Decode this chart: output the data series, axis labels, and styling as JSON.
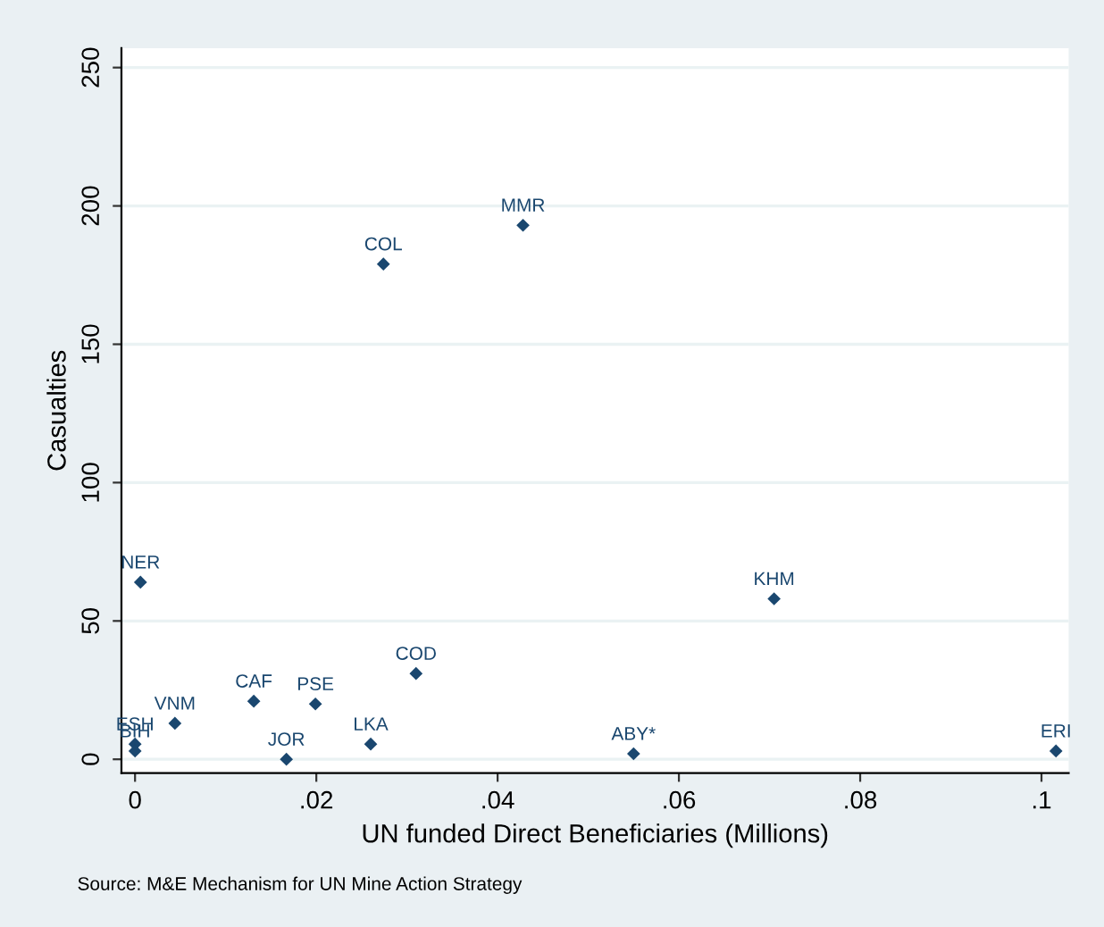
{
  "chart_data": {
    "type": "scatter",
    "xlabel": "UN funded Direct Beneficiaries (Millions)",
    "ylabel": "Casualties",
    "x": [
      0.0006,
      0,
      0,
      0.0044,
      0.0131,
      0.0167,
      0.0199,
      0.026,
      0.031,
      0.0274,
      0.0428,
      0.055,
      0.0705,
      0.1016
    ],
    "series": [
      {
        "color": "#1a476f",
        "values": [
          64,
          5.5,
          3,
          13,
          21,
          0,
          20,
          5.5,
          31,
          179,
          193,
          2,
          58,
          3
        ]
      }
    ],
    "marker": "diamond",
    "grid": "y",
    "xlim": [
      -0.0015,
      0.103
    ],
    "ylim": [
      -5,
      257
    ],
    "xticks": [
      {
        "value": 0,
        "label": "0"
      },
      {
        "value": 0.02,
        "label": ".02"
      },
      {
        "value": 0.04,
        "label": ".04"
      },
      {
        "value": 0.06,
        "label": ".06"
      },
      {
        "value": 0.08,
        "label": ".08"
      },
      {
        "value": 0.1,
        "label": ".1"
      }
    ],
    "yticks": [
      0,
      50,
      100,
      150,
      200,
      250
    ],
    "annotations": [
      {
        "text": "NER",
        "x": 0.0006,
        "y": 64
      },
      {
        "text": "ESH",
        "x": 0,
        "y": 5.5
      },
      {
        "text": "BIH",
        "x": 0,
        "y": 3
      },
      {
        "text": "VNM",
        "x": 0.0044,
        "y": 13
      },
      {
        "text": "CAF",
        "x": 0.0131,
        "y": 21
      },
      {
        "text": "JOR",
        "x": 0.0167,
        "y": 0
      },
      {
        "text": "PSE",
        "x": 0.0199,
        "y": 20
      },
      {
        "text": "LKA",
        "x": 0.026,
        "y": 5.5
      },
      {
        "text": "COD",
        "x": 0.031,
        "y": 31
      },
      {
        "text": "COL",
        "x": 0.0274,
        "y": 179
      },
      {
        "text": "MMR",
        "x": 0.0428,
        "y": 193
      },
      {
        "text": "ABY*",
        "x": 0.055,
        "y": 2
      },
      {
        "text": "KHM",
        "x": 0.0705,
        "y": 58
      },
      {
        "text": "ERI",
        "x": 0.1016,
        "y": 3
      },
      "Source: M&E Mechanism for UN Mine Action Strategy"
    ]
  }
}
